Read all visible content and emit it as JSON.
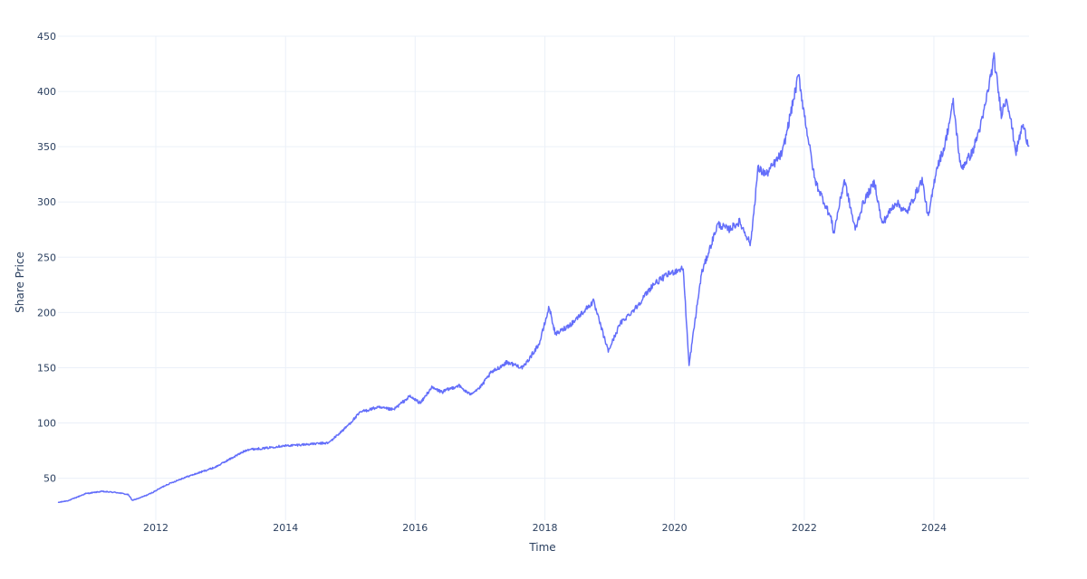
{
  "chart_data": {
    "type": "line",
    "title": "",
    "xlabel": "Time",
    "ylabel": "Share Price",
    "xlim": [
      "2010-06-29",
      "2025-06-20"
    ],
    "ylim": [
      12,
      450
    ],
    "x_ticks": [
      "2012",
      "2014",
      "2016",
      "2018",
      "2020",
      "2022",
      "2024"
    ],
    "y_ticks": [
      50,
      100,
      150,
      200,
      250,
      300,
      350,
      400,
      450
    ],
    "grid": true,
    "legend": "none",
    "colors": {
      "line": "#636efa",
      "grid": "#ebf0f8",
      "text": "#2a3f5f"
    },
    "series": [
      {
        "x": [
          "2010-06-29",
          "2010-09-01",
          "2010-12-01",
          "2011-03-01",
          "2011-06-01",
          "2011-08-01",
          "2011-08-20",
          "2011-10-01",
          "2011-12-01",
          "2012-03-01",
          "2012-06-01",
          "2012-09-01",
          "2012-12-01",
          "2013-03-01",
          "2013-06-01",
          "2013-09-01",
          "2013-12-01",
          "2014-03-01",
          "2014-06-01",
          "2014-09-01",
          "2014-12-01",
          "2015-03-01",
          "2015-06-01",
          "2015-09-01",
          "2015-12-01",
          "2016-02-01",
          "2016-04-01",
          "2016-06-01",
          "2016-09-01",
          "2016-11-01",
          "2017-01-01",
          "2017-03-01",
          "2017-06-01",
          "2017-09-01",
          "2017-12-01",
          "2018-01-25",
          "2018-03-01",
          "2018-06-01",
          "2018-10-01",
          "2018-12-24",
          "2019-03-01",
          "2019-06-01",
          "2019-09-01",
          "2019-12-01",
          "2020-02-19",
          "2020-03-23",
          "2020-04-15",
          "2020-06-01",
          "2020-09-01",
          "2020-11-01",
          "2021-01-01",
          "2021-03-05",
          "2021-04-15",
          "2021-06-01",
          "2021-09-01",
          "2021-11-30",
          "2021-12-27",
          "2022-03-01",
          "2022-06-01",
          "2022-06-16",
          "2022-08-15",
          "2022-10-15",
          "2022-12-01",
          "2023-02-01",
          "2023-03-15",
          "2023-06-01",
          "2023-08-01",
          "2023-10-27",
          "2023-12-01",
          "2024-01-15",
          "2024-03-01",
          "2024-04-19",
          "2024-06-01",
          "2024-08-05",
          "2024-10-01",
          "2024-12-05",
          "2025-01-15",
          "2025-02-15",
          "2025-04-08",
          "2025-05-15",
          "2025-06-20"
        ],
        "y": [
          28,
          30,
          36,
          38,
          37,
          35,
          30,
          32,
          36,
          44,
          50,
          55,
          60,
          68,
          76,
          77,
          79,
          80,
          81,
          82,
          95,
          110,
          114,
          112,
          124,
          118,
          132,
          128,
          134,
          126,
          132,
          145,
          155,
          150,
          172,
          205,
          180,
          190,
          210,
          165,
          190,
          205,
          225,
          235,
          240,
          152,
          180,
          235,
          280,
          275,
          282,
          262,
          330,
          325,
          345,
          415,
          385,
          320,
          285,
          272,
          320,
          275,
          300,
          318,
          280,
          300,
          290,
          320,
          285,
          330,
          350,
          390,
          330,
          345,
          375,
          430,
          380,
          395,
          345,
          370,
          350
        ]
      }
    ]
  }
}
